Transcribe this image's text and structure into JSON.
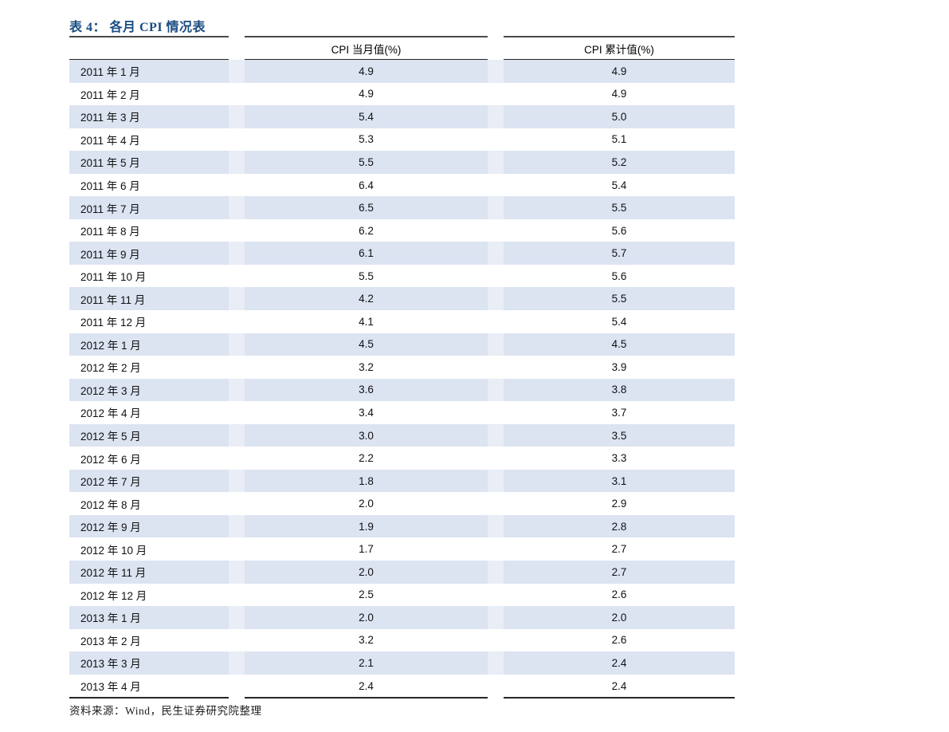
{
  "title": "表 4： 各月 CPI 情况表",
  "table": {
    "columns": [
      "",
      "CPI 当月值(%)",
      "CPI 累计值(%)"
    ],
    "rows": [
      {
        "month": "2011 年 1 月",
        "current": "4.9",
        "cumulative": "4.9"
      },
      {
        "month": "2011 年 2 月",
        "current": "4.9",
        "cumulative": "4.9"
      },
      {
        "month": "2011 年 3 月",
        "current": "5.4",
        "cumulative": "5.0"
      },
      {
        "month": "2011 年 4 月",
        "current": "5.3",
        "cumulative": "5.1"
      },
      {
        "month": "2011 年 5 月",
        "current": "5.5",
        "cumulative": "5.2"
      },
      {
        "month": "2011 年 6 月",
        "current": "6.4",
        "cumulative": "5.4"
      },
      {
        "month": "2011 年 7 月",
        "current": "6.5",
        "cumulative": "5.5"
      },
      {
        "month": "2011 年 8 月",
        "current": "6.2",
        "cumulative": "5.6"
      },
      {
        "month": "2011 年 9 月",
        "current": "6.1",
        "cumulative": "5.7"
      },
      {
        "month": "2011 年 10 月",
        "current": "5.5",
        "cumulative": "5.6"
      },
      {
        "month": "2011 年 11 月",
        "current": "4.2",
        "cumulative": "5.5"
      },
      {
        "month": "2011 年 12 月",
        "current": "4.1",
        "cumulative": "5.4"
      },
      {
        "month": "2012 年 1 月",
        "current": "4.5",
        "cumulative": "4.5"
      },
      {
        "month": "2012 年 2 月",
        "current": "3.2",
        "cumulative": "3.9"
      },
      {
        "month": "2012 年 3 月",
        "current": "3.6",
        "cumulative": "3.8"
      },
      {
        "month": "2012 年 4 月",
        "current": "3.4",
        "cumulative": "3.7"
      },
      {
        "month": "2012 年 5 月",
        "current": "3.0",
        "cumulative": "3.5"
      },
      {
        "month": "2012 年 6 月",
        "current": "2.2",
        "cumulative": "3.3"
      },
      {
        "month": "2012 年 7 月",
        "current": "1.8",
        "cumulative": "3.1"
      },
      {
        "month": "2012 年 8 月",
        "current": "2.0",
        "cumulative": "2.9"
      },
      {
        "month": "2012 年 9 月",
        "current": "1.9",
        "cumulative": "2.8"
      },
      {
        "month": "2012 年 10 月",
        "current": "1.7",
        "cumulative": "2.7"
      },
      {
        "month": "2012 年 11 月",
        "current": "2.0",
        "cumulative": "2.7"
      },
      {
        "month": "2012 年 12 月",
        "current": "2.5",
        "cumulative": "2.6"
      },
      {
        "month": "2013 年 1 月",
        "current": "2.0",
        "cumulative": "2.0"
      },
      {
        "month": "2013 年 2 月",
        "current": "3.2",
        "cumulative": "2.6"
      },
      {
        "month": "2013 年 3 月",
        "current": "2.1",
        "cumulative": "2.4"
      },
      {
        "month": "2013 年 4 月",
        "current": "2.4",
        "cumulative": "2.4"
      }
    ]
  },
  "footer": "资料来源：Wind，民生证券研究院整理",
  "colors": {
    "title": "#1A4C82",
    "stripe": "#DCE3F1",
    "stripe_gap": "#E9EDF5"
  }
}
